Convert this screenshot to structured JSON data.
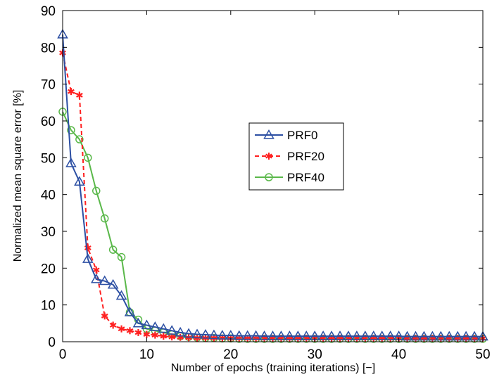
{
  "chart_data": {
    "type": "line",
    "xlabel": "Number of epochs (training iterations) [−]",
    "ylabel": "Normalized mean square error [%]",
    "xlim": [
      0,
      50
    ],
    "ylim": [
      0,
      90
    ],
    "xticks": [
      "0",
      "10",
      "20",
      "30",
      "40",
      "50"
    ],
    "yticks": [
      "0",
      "10",
      "20",
      "30",
      "40",
      "50",
      "60",
      "70",
      "80",
      "90"
    ],
    "grid": false,
    "legend_position": "center-right",
    "series": [
      {
        "name": "PRF0",
        "color": "#2c4fa3",
        "line_style": "solid",
        "marker": "triangle",
        "x": [
          0,
          1,
          2,
          3,
          4,
          5,
          6,
          7,
          8,
          9,
          10,
          11,
          12,
          13,
          14,
          15,
          16,
          17,
          18,
          19,
          20,
          21,
          22,
          23,
          24,
          25,
          26,
          27,
          28,
          29,
          30,
          31,
          32,
          33,
          34,
          35,
          36,
          37,
          38,
          39,
          40,
          41,
          42,
          43,
          44,
          45,
          46,
          47,
          48,
          49,
          50
        ],
        "y": [
          83.5,
          48.5,
          43.5,
          22.5,
          17,
          16.5,
          15.5,
          12.5,
          8,
          5,
          4.5,
          4,
          3.5,
          3,
          2.5,
          2.2,
          2,
          1.9,
          1.8,
          1.7,
          1.7,
          1.6,
          1.6,
          1.6,
          1.5,
          1.5,
          1.5,
          1.5,
          1.5,
          1.5,
          1.5,
          1.5,
          1.5,
          1.5,
          1.5,
          1.5,
          1.5,
          1.5,
          1.5,
          1.5,
          1.5,
          1.4,
          1.4,
          1.4,
          1.4,
          1.4,
          1.4,
          1.4,
          1.4,
          1.4,
          1.4
        ]
      },
      {
        "name": "PRF20",
        "color": "#ff2020",
        "line_style": "dashed",
        "marker": "asterisk",
        "x": [
          0,
          1,
          2,
          3,
          4,
          5,
          6,
          7,
          8,
          9,
          10,
          11,
          12,
          13,
          14,
          15,
          16,
          17,
          18,
          19,
          20,
          21,
          22,
          23,
          24,
          25,
          26,
          27,
          28,
          29,
          30,
          31,
          32,
          33,
          34,
          35,
          36,
          37,
          38,
          39,
          40,
          41,
          42,
          43,
          44,
          45,
          46,
          47,
          48,
          49,
          50
        ],
        "y": [
          78.5,
          68,
          67,
          25.5,
          19.5,
          7,
          4.5,
          3.5,
          3,
          2.5,
          2,
          1.8,
          1.5,
          1.3,
          1.2,
          1.1,
          1,
          1,
          1,
          1,
          0.9,
          0.9,
          0.9,
          0.9,
          0.9,
          0.9,
          0.9,
          0.9,
          0.9,
          0.9,
          0.9,
          0.9,
          0.9,
          0.9,
          0.9,
          0.9,
          0.9,
          0.9,
          0.9,
          0.9,
          0.9,
          0.9,
          0.9,
          0.9,
          0.9,
          0.9,
          0.9,
          0.9,
          0.9,
          0.9,
          0.9
        ]
      },
      {
        "name": "PRF40",
        "color": "#5ab84a",
        "line_style": "solid",
        "marker": "circle",
        "x": [
          0,
          1,
          2,
          3,
          4,
          5,
          6,
          7,
          8,
          9,
          10,
          11,
          12,
          13,
          14,
          15,
          16,
          17,
          18,
          19,
          20,
          21,
          22,
          23,
          24,
          25,
          26,
          27,
          28,
          29,
          30,
          31,
          32,
          33,
          34,
          35,
          36,
          37,
          38,
          39,
          40,
          41,
          42,
          43,
          44,
          45,
          46,
          47,
          48,
          49,
          50
        ],
        "y": [
          62.5,
          57.5,
          55,
          50,
          41,
          33.5,
          25,
          23,
          8,
          6,
          3.5,
          3,
          2.5,
          2,
          1.5,
          1.3,
          1.1,
          1,
          1,
          0.9,
          0.9,
          0.8,
          0.8,
          0.8,
          0.8,
          0.8,
          0.8,
          0.8,
          0.8,
          0.8,
          0.8,
          0.8,
          0.8,
          0.8,
          0.8,
          0.8,
          0.8,
          0.8,
          0.8,
          0.8,
          0.8,
          0.8,
          0.8,
          0.8,
          0.8,
          0.8,
          0.8,
          0.8,
          0.8,
          0.8,
          0.8
        ]
      }
    ]
  }
}
